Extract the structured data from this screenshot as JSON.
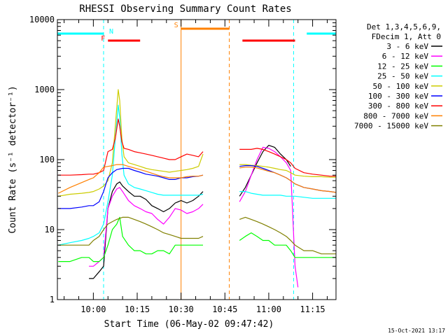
{
  "chart_data": {
    "type": "line",
    "title": "RHESSI Observing Summary Count Rates",
    "xlabel": "Start Time (06-May-02 09:47:42)",
    "ylabel": "Count Rate (s⁻¹ detector⁻¹)",
    "yscale": "log",
    "ylim": [
      1,
      10000
    ],
    "xlim": [
      "09:47:42",
      "11:23:00"
    ],
    "grid": false,
    "legend_position": "right-outside",
    "x_ticks": [
      "10:00",
      "10:15",
      "10:30",
      "10:45",
      "11:00",
      "11:15"
    ],
    "y_ticks": [
      "1",
      "10",
      "100",
      "1000",
      "10000"
    ],
    "legend_header": [
      "Det 1,3,4,5,6,9,",
      "FDecim 1, Att 0"
    ],
    "timestamp": "15-Oct-2021 13:17",
    "data_gap": [
      "10:38",
      "10:47"
    ],
    "series": [
      {
        "name": "3 - 6 keV",
        "color": "#000000",
        "x": [
          "09:58:30",
          "10:00:00",
          "10:02:00",
          "10:03:30",
          "10:05:00",
          "10:06:30",
          "10:08:00",
          "10:09:00",
          "10:10:00",
          "10:12:00",
          "10:14:00",
          "10:16:00",
          "10:18:00",
          "10:20:00",
          "10:22:00",
          "10:24:00",
          "10:26:00",
          "10:28:00",
          "10:30:00",
          "10:32:00",
          "10:34:00",
          "10:36:00",
          "10:37:30",
          "10:50:00",
          "10:52:00",
          "10:54:00",
          "10:56:00",
          "10:58:00",
          "11:00:00",
          "11:02:00",
          "11:04:00",
          "11:06:00",
          "11:07:30"
        ],
        "y": [
          2,
          2,
          2.5,
          3,
          20,
          35,
          45,
          48,
          42,
          35,
          30,
          30,
          27,
          22,
          20,
          18,
          20,
          24,
          26,
          24,
          26,
          30,
          35,
          30,
          40,
          60,
          90,
          130,
          160,
          150,
          120,
          100,
          80
        ]
      },
      {
        "name": "6 - 12 keV",
        "color": "#ff00ff",
        "x": [
          "09:58:30",
          "10:00:00",
          "10:02:00",
          "10:03:30",
          "10:05:00",
          "10:06:30",
          "10:08:00",
          "10:09:00",
          "10:10:00",
          "10:12:00",
          "10:14:00",
          "10:16:00",
          "10:18:00",
          "10:20:00",
          "10:22:00",
          "10:24:00",
          "10:26:00",
          "10:28:00",
          "10:30:00",
          "10:32:00",
          "10:34:00",
          "10:36:00",
          "10:37:30",
          "10:50:00",
          "10:52:00",
          "10:54:00",
          "10:56:00",
          "10:58:00",
          "11:00:00",
          "11:02:00",
          "11:04:00",
          "11:06:00",
          "11:07:30",
          "11:09:00",
          "11:10:00"
        ],
        "y": [
          3,
          3,
          3.5,
          4,
          20,
          30,
          38,
          40,
          35,
          26,
          22,
          20,
          18,
          17,
          14,
          12,
          15,
          20,
          19,
          17,
          18,
          20,
          23,
          25,
          35,
          60,
          100,
          150,
          145,
          130,
          110,
          90,
          70,
          3,
          1.5
        ]
      },
      {
        "name": "12 - 25 keV",
        "color": "#00ff00",
        "x": [
          "09:48:00",
          "09:52:00",
          "09:56:00",
          "09:58:30",
          "10:00:00",
          "10:02:00",
          "10:03:30",
          "10:05:00",
          "10:06:30",
          "10:08:00",
          "10:09:00",
          "10:10:00",
          "10:12:00",
          "10:14:00",
          "10:16:00",
          "10:18:00",
          "10:20:00",
          "10:22:00",
          "10:24:00",
          "10:26:00",
          "10:28:00",
          "10:30:00",
          "10:32:00",
          "10:34:00",
          "10:36:00",
          "10:37:30",
          "10:50:00",
          "10:52:00",
          "10:54:00",
          "10:56:00",
          "10:58:00",
          "11:00:00",
          "11:02:00",
          "11:04:00",
          "11:06:00",
          "11:07:30",
          "11:09:00",
          "11:12:00",
          "11:15:00",
          "11:18:00",
          "11:21:00",
          "11:23:00"
        ],
        "y": [
          3.5,
          3.5,
          4,
          4,
          3.5,
          3.5,
          4,
          6,
          10,
          12,
          15,
          8,
          6,
          5,
          5,
          4.5,
          4.5,
          5,
          5,
          4.5,
          6,
          6,
          6,
          6,
          6,
          6,
          7,
          8,
          9,
          8,
          7,
          7,
          6,
          6,
          6,
          5,
          4,
          4,
          4,
          4,
          4,
          4
        ]
      },
      {
        "name": "25 - 50 keV",
        "color": "#00ffff",
        "x": [
          "09:48:00",
          "09:52:00",
          "09:56:00",
          "09:58:30",
          "10:00:00",
          "10:02:00",
          "10:03:30",
          "10:05:00",
          "10:06:30",
          "10:07:30",
          "10:08:30",
          "10:09:00",
          "10:09:45",
          "10:10:30",
          "10:12:00",
          "10:14:00",
          "10:16:00",
          "10:18:00",
          "10:20:00",
          "10:22:00",
          "10:24:00",
          "10:26:00",
          "10:28:00",
          "10:30:00",
          "10:32:00",
          "10:34:00",
          "10:36:00",
          "10:37:30",
          "10:50:00",
          "10:52:00",
          "10:54:00",
          "10:56:00",
          "10:58:00",
          "11:00:00",
          "11:02:00",
          "11:04:00",
          "11:06:00",
          "11:07:30",
          "11:09:00",
          "11:12:00",
          "11:15:00",
          "11:18:00",
          "11:21:00",
          "11:23:00"
        ],
        "y": [
          6,
          6.5,
          7,
          7.5,
          8,
          9,
          12,
          25,
          60,
          200,
          600,
          400,
          120,
          60,
          45,
          40,
          38,
          36,
          34,
          32,
          31,
          31,
          31,
          31,
          31,
          31,
          31,
          32,
          35,
          35,
          33,
          32,
          31,
          31,
          31,
          31,
          30,
          30,
          30,
          29,
          28,
          28,
          28,
          28
        ]
      },
      {
        "name": "50 - 100 keV",
        "color": "#cccc00",
        "x": [
          "09:48:00",
          "09:52:00",
          "09:56:00",
          "09:58:30",
          "10:00:00",
          "10:02:00",
          "10:03:30",
          "10:05:00",
          "10:06:30",
          "10:07:30",
          "10:08:30",
          "10:09:00",
          "10:09:45",
          "10:10:30",
          "10:12:00",
          "10:14:00",
          "10:16:00",
          "10:18:00",
          "10:20:00",
          "10:22:00",
          "10:24:00",
          "10:26:00",
          "10:28:00",
          "10:30:00",
          "10:32:00",
          "10:34:00",
          "10:36:00",
          "10:37:30",
          "10:50:00",
          "10:52:00",
          "10:54:00",
          "10:56:00",
          "10:58:00",
          "11:00:00",
          "11:02:00",
          "11:04:00",
          "11:06:00",
          "11:07:30",
          "11:09:00",
          "11:12:00",
          "11:15:00",
          "11:18:00",
          "11:21:00",
          "11:23:00"
        ],
        "y": [
          30,
          32,
          33,
          34,
          35,
          38,
          42,
          50,
          90,
          300,
          1000,
          700,
          200,
          110,
          90,
          85,
          80,
          75,
          72,
          70,
          68,
          66,
          68,
          70,
          72,
          75,
          80,
          120,
          85,
          85,
          83,
          82,
          80,
          78,
          75,
          72,
          70,
          65,
          60,
          58,
          57,
          57,
          56,
          56
        ]
      },
      {
        "name": "100 - 300 keV",
        "color": "#0000ff",
        "x": [
          "09:48:00",
          "09:52:00",
          "09:56:00",
          "09:58:30",
          "10:00:00",
          "10:02:00",
          "10:03:30",
          "10:05:00",
          "10:06:30",
          "10:08:00",
          "10:10:00",
          "10:12:00",
          "10:14:00",
          "10:16:00",
          "10:18:00",
          "10:20:00",
          "10:22:00",
          "10:24:00",
          "10:26:00",
          "10:28:00",
          "10:30:00",
          "10:32:00",
          "10:34:00",
          "10:36:00",
          "10:37:30",
          "10:50:00",
          "10:52:00",
          "10:54:00",
          "10:56:00",
          "10:58:00",
          "11:00:00",
          "11:02:00",
          "11:04:00",
          "11:06:00",
          "11:07:30",
          "11:09:00",
          "11:12:00",
          "11:15:00",
          "11:18:00",
          "11:21:00",
          "11:23:00"
        ],
        "y": [
          20,
          20,
          21,
          22,
          22,
          25,
          35,
          55,
          65,
          72,
          75,
          75,
          70,
          66,
          62,
          60,
          58,
          55,
          52,
          52,
          55,
          55,
          57,
          58,
          60,
          80,
          82,
          82,
          80,
          75,
          70,
          65,
          60,
          55,
          50,
          45,
          40,
          38,
          36,
          35,
          34
        ]
      },
      {
        "name": "300 - 800 keV",
        "color": "#ff0000",
        "x": [
          "09:48:00",
          "09:52:00",
          "09:56:00",
          "09:58:30",
          "10:00:00",
          "10:02:00",
          "10:03:30",
          "10:05:00",
          "10:06:30",
          "10:07:30",
          "10:08:30",
          "10:09:00",
          "10:09:45",
          "10:10:30",
          "10:12:00",
          "10:14:00",
          "10:16:00",
          "10:18:00",
          "10:20:00",
          "10:22:00",
          "10:24:00",
          "10:26:00",
          "10:28:00",
          "10:30:00",
          "10:32:00",
          "10:34:00",
          "10:36:00",
          "10:37:30",
          "10:50:00",
          "10:52:00",
          "10:54:00",
          "10:56:00",
          "10:58:00",
          "11:00:00",
          "11:02:00",
          "11:04:00",
          "11:06:00",
          "11:07:30",
          "11:09:00",
          "11:12:00",
          "11:15:00",
          "11:18:00",
          "11:21:00",
          "11:23:00"
        ],
        "y": [
          60,
          60,
          61,
          62,
          62,
          65,
          70,
          130,
          140,
          200,
          380,
          300,
          180,
          145,
          140,
          130,
          125,
          120,
          115,
          110,
          105,
          100,
          100,
          110,
          120,
          115,
          110,
          130,
          140,
          140,
          140,
          145,
          140,
          130,
          120,
          110,
          100,
          90,
          75,
          65,
          62,
          60,
          58,
          58
        ]
      },
      {
        "name": "800 - 7000 keV",
        "color": "#ff8000",
        "x": [
          "09:48:00",
          "09:52:00",
          "09:56:00",
          "09:58:30",
          "10:00:00",
          "10:02:00",
          "10:03:30",
          "10:05:00",
          "10:06:30",
          "10:08:00",
          "10:10:00",
          "10:12:00",
          "10:14:00",
          "10:16:00",
          "10:18:00",
          "10:20:00",
          "10:22:00",
          "10:24:00",
          "10:26:00",
          "10:28:00",
          "10:30:00",
          "10:32:00",
          "10:34:00",
          "10:36:00",
          "10:37:30",
          "10:50:00",
          "10:52:00",
          "10:54:00",
          "10:56:00",
          "10:58:00",
          "11:00:00",
          "11:02:00",
          "11:04:00",
          "11:06:00",
          "11:07:30",
          "11:09:00",
          "11:12:00",
          "11:15:00",
          "11:18:00",
          "11:21:00",
          "11:23:00"
        ],
        "y": [
          33,
          40,
          47,
          52,
          55,
          65,
          78,
          80,
          82,
          85,
          85,
          80,
          76,
          72,
          68,
          64,
          60,
          57,
          55,
          55,
          55,
          57,
          58,
          58,
          60,
          76,
          78,
          78,
          76,
          72,
          68,
          65,
          60,
          55,
          50,
          45,
          40,
          38,
          36,
          35,
          34
        ]
      },
      {
        "name": "7000 - 15000 keV",
        "color": "#808000",
        "x": [
          "09:48:00",
          "09:52:00",
          "09:56:00",
          "09:58:30",
          "10:00:00",
          "10:02:00",
          "10:03:30",
          "10:05:00",
          "10:06:30",
          "10:08:00",
          "10:10:00",
          "10:12:00",
          "10:14:00",
          "10:16:00",
          "10:18:00",
          "10:20:00",
          "10:22:00",
          "10:24:00",
          "10:26:00",
          "10:28:00",
          "10:30:00",
          "10:32:00",
          "10:34:00",
          "10:36:00",
          "10:37:30",
          "10:50:00",
          "10:52:00",
          "10:54:00",
          "10:56:00",
          "10:58:00",
          "11:00:00",
          "11:02:00",
          "11:04:00",
          "11:06:00",
          "11:07:30",
          "11:09:00",
          "11:12:00",
          "11:15:00",
          "11:18:00",
          "11:21:00",
          "11:23:00"
        ],
        "y": [
          6,
          6,
          6,
          6,
          7,
          8,
          10,
          12,
          13,
          14,
          15,
          15,
          14,
          13,
          12,
          11,
          10,
          9,
          8.5,
          8,
          7.5,
          7.5,
          7.5,
          7.5,
          8,
          14,
          15,
          14,
          13,
          12,
          11,
          10,
          9,
          8,
          7,
          6,
          5,
          5,
          4.5,
          4.5,
          4.5
        ]
      }
    ],
    "annotations": [
      {
        "label": "N",
        "color": "#00ffff",
        "bars": [
          [
            "09:47:42",
            "10:03:30"
          ],
          [
            "11:13:00",
            "11:23:00"
          ]
        ],
        "lines": [
          "09:47:42",
          "10:03:30",
          "11:08:30",
          "11:23:00"
        ]
      },
      {
        "label": "F",
        "color": "#ff0000",
        "bars": [
          [
            "10:05:00",
            "10:16:00"
          ],
          [
            "10:51:00",
            "11:09:00"
          ]
        ],
        "lines": []
      },
      {
        "label": "S",
        "color": "#ff8000",
        "bars": [
          [
            "10:30:00",
            "10:46:30"
          ]
        ],
        "lines": [
          "10:30:00",
          "10:46:30"
        ]
      }
    ]
  }
}
